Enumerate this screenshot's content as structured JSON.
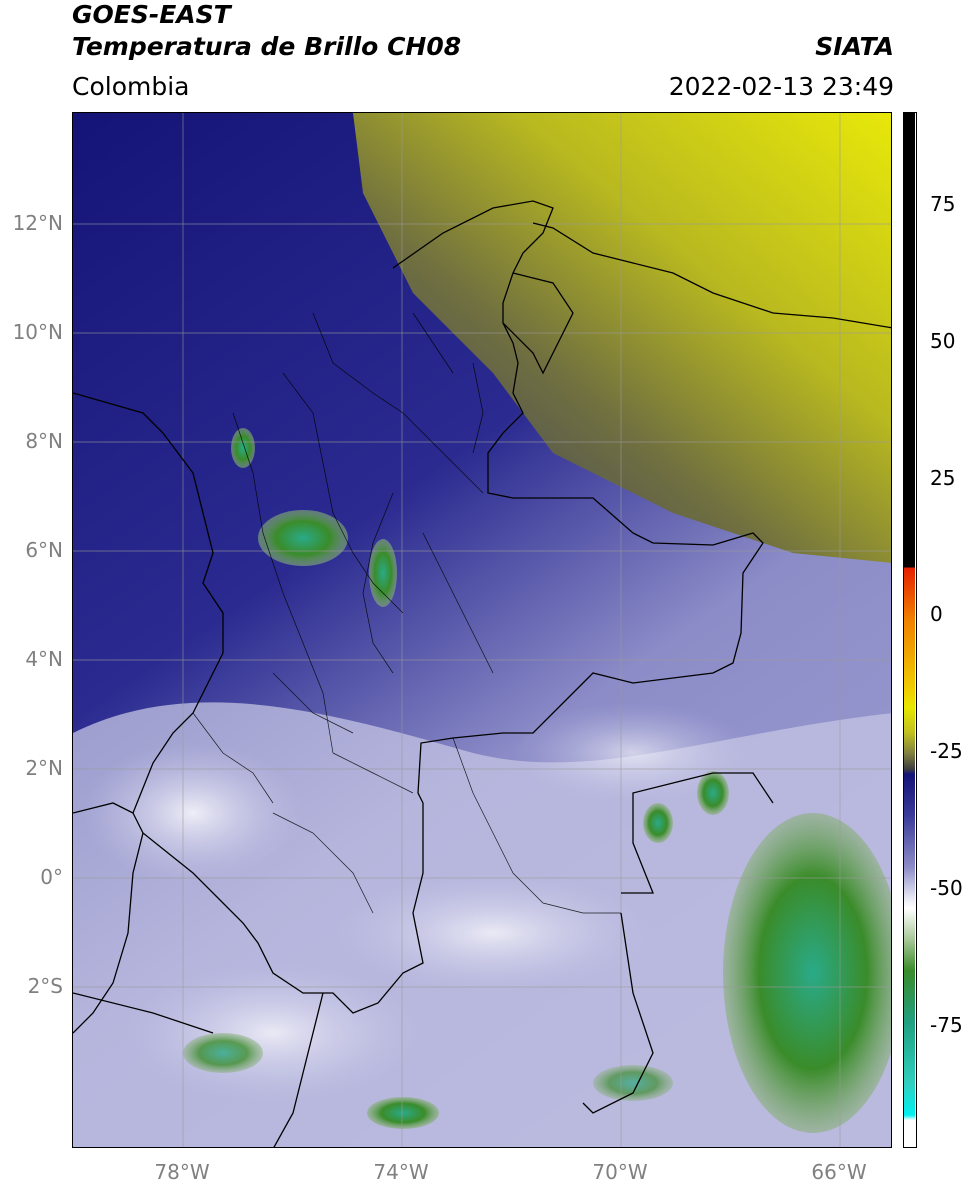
{
  "header": {
    "satellite": "GOES-EAST",
    "product": "Temperatura de Brillo CH08",
    "region": "Colombia",
    "organization": "SIATA",
    "datetime": "2022-02-13 23:49"
  },
  "map": {
    "lat_labels": [
      "12°N",
      "10°N",
      "8°N",
      "6°N",
      "4°N",
      "2°N",
      "0°",
      "2°S"
    ],
    "lon_labels": [
      "78°W",
      "74°W",
      "70°W",
      "66°W"
    ],
    "extent": {
      "lon_min": -80,
      "lon_max": -65,
      "lat_min": -4.8,
      "lat_max": 14.0
    }
  },
  "colorbar": {
    "ticks": [
      "75",
      "50",
      "25",
      "0",
      "-25",
      "-50",
      "-75"
    ],
    "tick_values": [
      75,
      50,
      25,
      0,
      -25,
      -50,
      -75
    ],
    "range": [
      -95,
      90
    ],
    "colors": {
      "black": "#000000",
      "red": "#e61e00",
      "orange": "#f59a00",
      "yellow": "#e8e800",
      "olive": "#8a8a30",
      "gray": "#4a4a4a",
      "navy": "#141478",
      "lavender": "#8c8cc8",
      "white": "#ffffff",
      "green": "#3a8c2a",
      "teal": "#20b4a0",
      "cyan": "#00f0f0"
    }
  }
}
